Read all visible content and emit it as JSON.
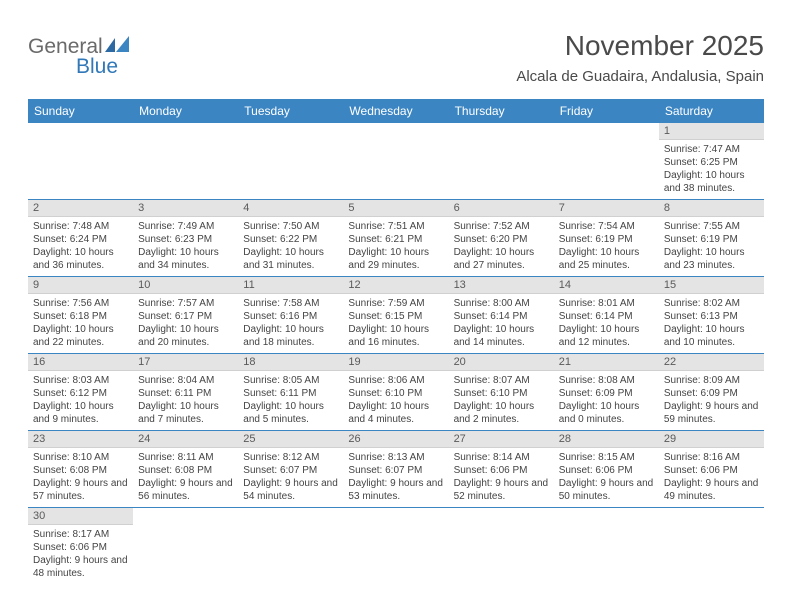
{
  "logo": {
    "text1": "General",
    "text2": "Blue"
  },
  "title": "November 2025",
  "subtitle": "Alcala de Guadaira, Andalusia, Spain",
  "colors": {
    "header_bg": "#3b85c3",
    "header_fg": "#ffffff",
    "daynum_bg": "#e4e4e4",
    "row_border": "#3b85c3",
    "logo_gray": "#6a6a6a",
    "logo_blue": "#3178b8"
  },
  "weekdays": [
    "Sunday",
    "Monday",
    "Tuesday",
    "Wednesday",
    "Thursday",
    "Friday",
    "Saturday"
  ],
  "weeks": [
    [
      null,
      null,
      null,
      null,
      null,
      null,
      {
        "n": "1",
        "sr": "7:47 AM",
        "ss": "6:25 PM",
        "dl": "10 hours and 38 minutes."
      }
    ],
    [
      {
        "n": "2",
        "sr": "7:48 AM",
        "ss": "6:24 PM",
        "dl": "10 hours and 36 minutes."
      },
      {
        "n": "3",
        "sr": "7:49 AM",
        "ss": "6:23 PM",
        "dl": "10 hours and 34 minutes."
      },
      {
        "n": "4",
        "sr": "7:50 AM",
        "ss": "6:22 PM",
        "dl": "10 hours and 31 minutes."
      },
      {
        "n": "5",
        "sr": "7:51 AM",
        "ss": "6:21 PM",
        "dl": "10 hours and 29 minutes."
      },
      {
        "n": "6",
        "sr": "7:52 AM",
        "ss": "6:20 PM",
        "dl": "10 hours and 27 minutes."
      },
      {
        "n": "7",
        "sr": "7:54 AM",
        "ss": "6:19 PM",
        "dl": "10 hours and 25 minutes."
      },
      {
        "n": "8",
        "sr": "7:55 AM",
        "ss": "6:19 PM",
        "dl": "10 hours and 23 minutes."
      }
    ],
    [
      {
        "n": "9",
        "sr": "7:56 AM",
        "ss": "6:18 PM",
        "dl": "10 hours and 22 minutes."
      },
      {
        "n": "10",
        "sr": "7:57 AM",
        "ss": "6:17 PM",
        "dl": "10 hours and 20 minutes."
      },
      {
        "n": "11",
        "sr": "7:58 AM",
        "ss": "6:16 PM",
        "dl": "10 hours and 18 minutes."
      },
      {
        "n": "12",
        "sr": "7:59 AM",
        "ss": "6:15 PM",
        "dl": "10 hours and 16 minutes."
      },
      {
        "n": "13",
        "sr": "8:00 AM",
        "ss": "6:14 PM",
        "dl": "10 hours and 14 minutes."
      },
      {
        "n": "14",
        "sr": "8:01 AM",
        "ss": "6:14 PM",
        "dl": "10 hours and 12 minutes."
      },
      {
        "n": "15",
        "sr": "8:02 AM",
        "ss": "6:13 PM",
        "dl": "10 hours and 10 minutes."
      }
    ],
    [
      {
        "n": "16",
        "sr": "8:03 AM",
        "ss": "6:12 PM",
        "dl": "10 hours and 9 minutes."
      },
      {
        "n": "17",
        "sr": "8:04 AM",
        "ss": "6:11 PM",
        "dl": "10 hours and 7 minutes."
      },
      {
        "n": "18",
        "sr": "8:05 AM",
        "ss": "6:11 PM",
        "dl": "10 hours and 5 minutes."
      },
      {
        "n": "19",
        "sr": "8:06 AM",
        "ss": "6:10 PM",
        "dl": "10 hours and 4 minutes."
      },
      {
        "n": "20",
        "sr": "8:07 AM",
        "ss": "6:10 PM",
        "dl": "10 hours and 2 minutes."
      },
      {
        "n": "21",
        "sr": "8:08 AM",
        "ss": "6:09 PM",
        "dl": "10 hours and 0 minutes."
      },
      {
        "n": "22",
        "sr": "8:09 AM",
        "ss": "6:09 PM",
        "dl": "9 hours and 59 minutes."
      }
    ],
    [
      {
        "n": "23",
        "sr": "8:10 AM",
        "ss": "6:08 PM",
        "dl": "9 hours and 57 minutes."
      },
      {
        "n": "24",
        "sr": "8:11 AM",
        "ss": "6:08 PM",
        "dl": "9 hours and 56 minutes."
      },
      {
        "n": "25",
        "sr": "8:12 AM",
        "ss": "6:07 PM",
        "dl": "9 hours and 54 minutes."
      },
      {
        "n": "26",
        "sr": "8:13 AM",
        "ss": "6:07 PM",
        "dl": "9 hours and 53 minutes."
      },
      {
        "n": "27",
        "sr": "8:14 AM",
        "ss": "6:06 PM",
        "dl": "9 hours and 52 minutes."
      },
      {
        "n": "28",
        "sr": "8:15 AM",
        "ss": "6:06 PM",
        "dl": "9 hours and 50 minutes."
      },
      {
        "n": "29",
        "sr": "8:16 AM",
        "ss": "6:06 PM",
        "dl": "9 hours and 49 minutes."
      }
    ],
    [
      {
        "n": "30",
        "sr": "8:17 AM",
        "ss": "6:06 PM",
        "dl": "9 hours and 48 minutes."
      },
      null,
      null,
      null,
      null,
      null,
      null
    ]
  ],
  "labels": {
    "sunrise": "Sunrise:",
    "sunset": "Sunset:",
    "daylight": "Daylight:"
  }
}
